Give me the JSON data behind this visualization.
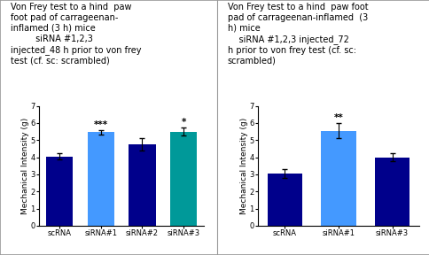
{
  "chart1": {
    "title_lines": [
      "Von Frey test to a hind  paw",
      "foot pad of carrageenan-",
      "inflamed (3 h) mice",
      "         siRNA #1,2,3",
      "injected_48 h prior to von frey",
      "test (cf. sc: scrambled)"
    ],
    "categories": [
      "scRNA",
      "siRNA#1",
      "siRNA#2",
      "siRNA#3"
    ],
    "values": [
      4.05,
      5.45,
      4.75,
      5.5
    ],
    "errors": [
      0.18,
      0.12,
      0.35,
      0.22
    ],
    "bar_colors": [
      "#00008B",
      "#4499FF",
      "#00008B",
      "#009999"
    ],
    "significance": [
      "",
      "***",
      "",
      "*"
    ],
    "ylabel": "Mechanical Intensity (g)",
    "ylim": [
      0,
      7
    ],
    "yticks": [
      0,
      1,
      2,
      3,
      4,
      5,
      6,
      7
    ]
  },
  "chart2": {
    "title_lines": [
      "Von Frey test to a hind  paw foot",
      "pad of carrageenan-inflamed  (3",
      "h) mice",
      "    siRNA #1,2,3 injected_72",
      "h prior to von frey test (cf. sc:",
      "scrambled)"
    ],
    "categories": [
      "scRNA",
      "siRNA#1",
      "siRNA#3"
    ],
    "values": [
      3.05,
      5.55,
      4.0
    ],
    "errors": [
      0.25,
      0.45,
      0.22
    ],
    "bar_colors": [
      "#00008B",
      "#4499FF",
      "#00008B"
    ],
    "significance": [
      "",
      "**",
      ""
    ],
    "ylabel": "Mechanical Intensity (g)",
    "ylim": [
      0,
      7
    ],
    "yticks": [
      0,
      1,
      2,
      3,
      4,
      5,
      6,
      7
    ]
  },
  "background_color": "#FFFFFF",
  "border_color": "#999999",
  "title_fontsize": 7.0,
  "label_fontsize": 6.5,
  "tick_fontsize": 6.0,
  "sig_fontsize": 7.5
}
